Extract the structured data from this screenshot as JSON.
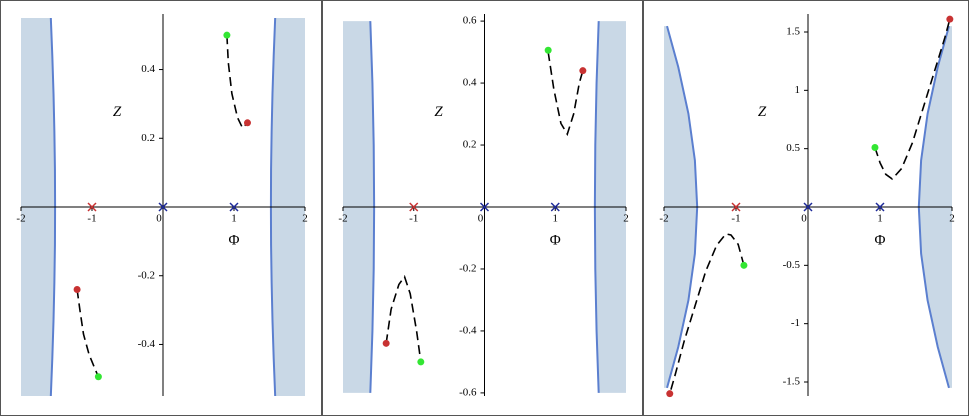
{
  "chart_data": [
    {
      "type": "line",
      "x_label": "Φ",
      "y_label": "Z",
      "xlim": [
        -2,
        2
      ],
      "ylim": [
        -0.55,
        0.55
      ],
      "xticks": [
        -2,
        -1,
        0,
        1,
        2
      ],
      "yticks": [
        -0.4,
        -0.2,
        0.2,
        0.4
      ],
      "shade_color": "#c9d8e6",
      "boundary_color": "#5b7fcf",
      "curve_color": "#000000",
      "boundaries": [
        {
          "side": "left",
          "x": [
            -1.58,
            -1.559,
            -1.542,
            -1.53,
            -1.522,
            -1.52,
            -1.522,
            -1.53,
            -1.542,
            -1.559,
            -1.58
          ],
          "y": [
            -0.55,
            -0.44,
            -0.33,
            -0.22,
            -0.11,
            0,
            0.11,
            0.22,
            0.33,
            0.44,
            0.55
          ]
        },
        {
          "side": "right",
          "x": [
            1.58,
            1.559,
            1.542,
            1.53,
            1.522,
            1.52,
            1.522,
            1.53,
            1.542,
            1.559,
            1.58
          ],
          "y": [
            -0.55,
            -0.44,
            -0.33,
            -0.22,
            -0.11,
            0,
            0.11,
            0.22,
            0.33,
            0.44,
            0.55
          ]
        }
      ],
      "curves": [
        {
          "x": [
            0.9,
            0.92,
            0.97,
            1.05,
            1.12,
            1.19
          ],
          "y": [
            0.5,
            0.42,
            0.33,
            0.26,
            0.23,
            0.245
          ]
        },
        {
          "x": [
            -1.21,
            -1.17,
            -1.12,
            -1.04,
            -0.96,
            -0.91
          ],
          "y": [
            -0.24,
            -0.3,
            -0.37,
            -0.43,
            -0.47,
            -0.494
          ]
        }
      ],
      "points": [
        {
          "x": 0.9,
          "y": 0.5,
          "color": "#33e633"
        },
        {
          "x": 1.19,
          "y": 0.245,
          "color": "#c83232"
        },
        {
          "x": -1.21,
          "y": -0.24,
          "color": "#c83232"
        },
        {
          "x": -0.91,
          "y": -0.494,
          "color": "#33e633"
        }
      ],
      "crosses": [
        {
          "x": -1,
          "y": 0,
          "color": "#c83232"
        },
        {
          "x": 0,
          "y": 0,
          "color": "#1e2a9a"
        },
        {
          "x": 1,
          "y": 0,
          "color": "#1e2a9a"
        }
      ]
    },
    {
      "type": "line",
      "x_label": "Φ",
      "y_label": "Z",
      "xlim": [
        -2,
        2
      ],
      "ylim": [
        -0.61,
        0.61
      ],
      "xticks": [
        -2,
        -1,
        0,
        1,
        2
      ],
      "yticks": [
        -0.6,
        -0.4,
        -0.2,
        0.2,
        0.4,
        0.6
      ],
      "shade_color": "#c9d8e6",
      "boundary_color": "#5b7fcf",
      "curve_color": "#000000",
      "boundaries": [
        {
          "side": "left",
          "x": [
            -1.614,
            -1.584,
            -1.566,
            -1.56,
            -1.566,
            -1.584,
            -1.614
          ],
          "y": [
            -0.6,
            -0.4,
            -0.2,
            0,
            0.2,
            0.4,
            0.6
          ]
        },
        {
          "side": "right",
          "x": [
            1.614,
            1.584,
            1.566,
            1.56,
            1.566,
            1.584,
            1.614
          ],
          "y": [
            -0.6,
            -0.4,
            -0.2,
            0,
            0.2,
            0.4,
            0.6
          ]
        }
      ],
      "curves": [
        {
          "x": [
            0.9,
            0.98,
            1.08,
            1.17,
            1.26,
            1.34,
            1.39
          ],
          "y": [
            0.5,
            0.38,
            0.27,
            0.235,
            0.3,
            0.4,
            0.44
          ]
        },
        {
          "x": [
            -1.39,
            -1.32,
            -1.21,
            -1.13,
            -1.05,
            -0.96,
            -0.9
          ],
          "y": [
            -0.44,
            -0.33,
            -0.25,
            -0.225,
            -0.28,
            -0.4,
            -0.5
          ]
        }
      ],
      "points": [
        {
          "x": 0.9,
          "y": 0.506,
          "color": "#33e633"
        },
        {
          "x": 1.39,
          "y": 0.44,
          "color": "#c83232"
        },
        {
          "x": -1.39,
          "y": -0.44,
          "color": "#c83232"
        },
        {
          "x": -0.9,
          "y": -0.5,
          "color": "#33e633"
        }
      ],
      "crosses": [
        {
          "x": -1,
          "y": 0,
          "color": "#c83232"
        },
        {
          "x": 0,
          "y": 0,
          "color": "#1e2a9a"
        },
        {
          "x": 1,
          "y": 0,
          "color": "#1e2a9a"
        }
      ]
    },
    {
      "type": "line",
      "x_label": "Φ",
      "y_label": "Z",
      "xlim": [
        -2,
        2
      ],
      "ylim": [
        -1.62,
        1.62
      ],
      "xticks": [
        -2,
        -1,
        0,
        1,
        2
      ],
      "yticks": [
        -1.5,
        -1,
        -0.5,
        0.5,
        1,
        1.5
      ],
      "shade_color": "#c9d8e6",
      "boundary_color": "#5b7fcf",
      "curve_color": "#000000",
      "boundaries": [
        {
          "side": "left",
          "x": [
            -1.958,
            -1.802,
            -1.661,
            -1.571,
            -1.539,
            -1.571,
            -1.661,
            -1.802,
            -1.958
          ],
          "y": [
            -1.55,
            -1.2,
            -0.8,
            -0.4,
            0,
            0.4,
            0.8,
            1.2,
            1.55
          ]
        },
        {
          "side": "right",
          "x": [
            1.958,
            1.802,
            1.661,
            1.571,
            1.539,
            1.571,
            1.661,
            1.802,
            1.958
          ],
          "y": [
            -1.55,
            -1.2,
            -0.8,
            -0.4,
            0,
            0.4,
            0.8,
            1.2,
            1.55
          ]
        }
      ],
      "curves": [
        {
          "x": [
            0.93,
            1.0,
            1.08,
            1.17,
            1.3,
            1.45,
            1.6,
            1.75,
            1.9,
            1.97
          ],
          "y": [
            0.51,
            0.38,
            0.28,
            0.24,
            0.33,
            0.55,
            0.85,
            1.15,
            1.45,
            1.61
          ]
        },
        {
          "x": [
            -0.89,
            -0.97,
            -1.07,
            -1.14,
            -1.27,
            -1.42,
            -1.57,
            -1.72,
            -1.85,
            -1.92
          ],
          "y": [
            -0.5,
            -0.32,
            -0.24,
            -0.23,
            -0.33,
            -0.55,
            -0.85,
            -1.15,
            -1.45,
            -1.6
          ]
        }
      ],
      "points": [
        {
          "x": 0.93,
          "y": 0.51,
          "color": "#33e633"
        },
        {
          "x": 1.97,
          "y": 1.61,
          "color": "#c83232"
        },
        {
          "x": -0.89,
          "y": -0.5,
          "color": "#33e633"
        },
        {
          "x": -1.92,
          "y": -1.6,
          "color": "#c83232"
        }
      ],
      "crosses": [
        {
          "x": -1,
          "y": 0,
          "color": "#c83232"
        },
        {
          "x": 0,
          "y": 0,
          "color": "#1e2a9a"
        },
        {
          "x": 1,
          "y": 0,
          "color": "#1e2a9a"
        }
      ]
    }
  ]
}
